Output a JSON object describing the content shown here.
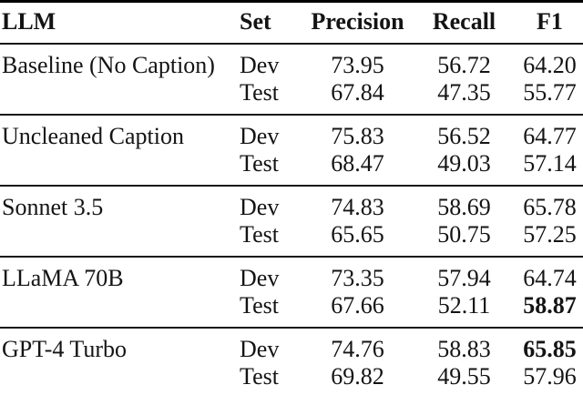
{
  "table": {
    "columns": [
      {
        "key": "llm",
        "label": "LLM"
      },
      {
        "key": "set",
        "label": "Set"
      },
      {
        "key": "precision",
        "label": "Precision"
      },
      {
        "key": "recall",
        "label": "Recall"
      },
      {
        "key": "f1",
        "label": "F1"
      }
    ],
    "groups": [
      {
        "llm": "Baseline (No Caption)",
        "rows": [
          {
            "set": "Dev",
            "precision": "73.95",
            "recall": "56.72",
            "f1": "64.20",
            "f1_bold": false
          },
          {
            "set": "Test",
            "precision": "67.84",
            "recall": "47.35",
            "f1": "55.77",
            "f1_bold": false
          }
        ]
      },
      {
        "llm": "Uncleaned Caption",
        "rows": [
          {
            "set": "Dev",
            "precision": "75.83",
            "recall": "56.52",
            "f1": "64.77",
            "f1_bold": false
          },
          {
            "set": "Test",
            "precision": "68.47",
            "recall": "49.03",
            "f1": "57.14",
            "f1_bold": false
          }
        ]
      },
      {
        "llm": "Sonnet 3.5",
        "rows": [
          {
            "set": "Dev",
            "precision": "74.83",
            "recall": "58.69",
            "f1": "65.78",
            "f1_bold": false
          },
          {
            "set": "Test",
            "precision": "65.65",
            "recall": "50.75",
            "f1": "57.25",
            "f1_bold": false
          }
        ]
      },
      {
        "llm": "LLaMA 70B",
        "rows": [
          {
            "set": "Dev",
            "precision": "73.35",
            "recall": "57.94",
            "f1": "64.74",
            "f1_bold": false
          },
          {
            "set": "Test",
            "precision": "67.66",
            "recall": "52.11",
            "f1": "58.87",
            "f1_bold": true
          }
        ]
      },
      {
        "llm": "GPT-4 Turbo",
        "rows": [
          {
            "set": "Dev",
            "precision": "74.76",
            "recall": "58.83",
            "f1": "65.85",
            "f1_bold": true
          },
          {
            "set": "Test",
            "precision": "69.82",
            "recall": "49.55",
            "f1": "57.96",
            "f1_bold": false
          }
        ]
      }
    ],
    "text_color": "#141414",
    "rule_color": "#000000",
    "background_color": "#ffffff"
  }
}
